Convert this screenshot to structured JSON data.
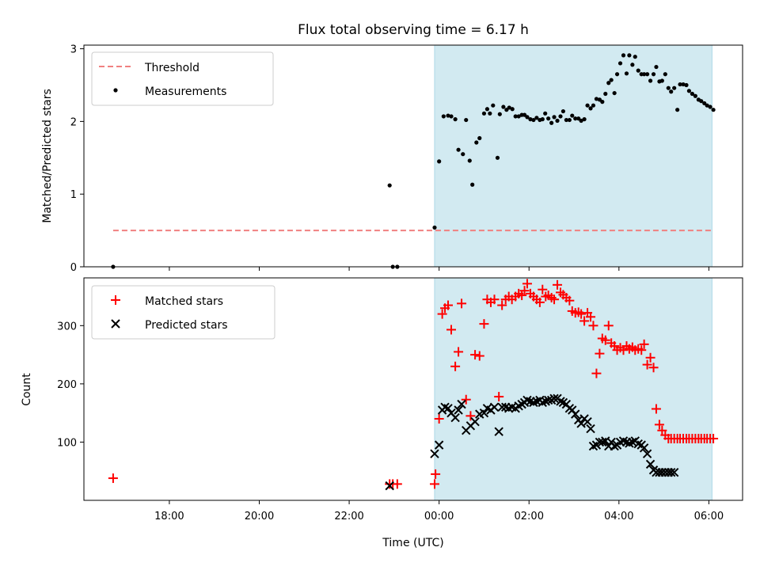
{
  "chart_data": [
    {
      "type": "scatter",
      "panel": "top",
      "title": "Flux total observing time = 6.17 h",
      "xlabel": "",
      "ylabel": "Matched/Predicted stars",
      "xlim": [
        16.1,
        30.75
      ],
      "ylim": [
        0,
        3.05
      ],
      "yticks": [
        0,
        1,
        2,
        3
      ],
      "ytick_labels": [
        "0",
        "1",
        "2",
        "3"
      ],
      "xticks": [
        18,
        20,
        22,
        24,
        26,
        28,
        30
      ],
      "shaded_span": [
        23.9,
        30.07
      ],
      "shaded_color": "#add8e6",
      "threshold": {
        "label": "Threshold",
        "y": 0.5,
        "x_start": 16.75,
        "x_end": 30.07,
        "color": "#f08080"
      },
      "legend": [
        "Threshold",
        "Measurements"
      ],
      "legend_position": "upper left",
      "series": [
        {
          "name": "Measurements",
          "marker": "dot",
          "color": "#000000",
          "x": [
            16.75,
            22.9,
            22.97,
            23.07,
            23.9,
            24.0,
            24.1,
            24.2,
            24.27,
            24.36,
            24.43,
            24.53,
            24.6,
            24.68,
            24.74,
            24.83,
            24.9,
            25.0,
            25.07,
            25.13,
            25.2,
            25.3,
            25.35,
            25.43,
            25.5,
            25.56,
            25.63,
            25.7,
            25.77,
            25.84,
            25.9,
            25.96,
            26.03,
            26.1,
            26.17,
            26.24,
            26.3,
            26.36,
            26.43,
            26.5,
            26.56,
            26.63,
            26.7,
            26.76,
            26.83,
            26.9,
            26.96,
            27.03,
            27.1,
            27.16,
            27.23,
            27.3,
            27.37,
            27.43,
            27.5,
            27.57,
            27.63,
            27.7,
            27.77,
            27.83,
            27.9,
            27.96,
            28.03,
            28.1,
            28.17,
            28.23,
            28.3,
            28.36,
            28.43,
            28.5,
            28.56,
            28.63,
            28.7,
            28.77,
            28.83,
            28.9,
            28.96,
            29.03,
            29.1,
            29.16,
            29.23,
            29.3,
            29.36,
            29.43,
            29.5,
            29.56,
            29.63,
            29.7,
            29.77,
            29.83,
            29.9,
            29.96,
            30.03,
            30.1
          ],
          "y": [
            0.0,
            1.12,
            0.0,
            0.0,
            0.54,
            1.45,
            2.07,
            2.08,
            2.07,
            2.03,
            1.61,
            1.55,
            2.02,
            1.46,
            1.13,
            1.71,
            1.77,
            2.11,
            2.17,
            2.11,
            2.22,
            1.5,
            2.1,
            2.2,
            2.16,
            2.19,
            2.17,
            2.07,
            2.07,
            2.09,
            2.09,
            2.06,
            2.03,
            2.02,
            2.05,
            2.02,
            2.03,
            2.11,
            2.04,
            1.98,
            2.06,
            2.01,
            2.07,
            2.14,
            2.02,
            2.02,
            2.08,
            2.04,
            2.04,
            2.01,
            2.03,
            2.22,
            2.18,
            2.22,
            2.31,
            2.3,
            2.27,
            2.38,
            2.53,
            2.57,
            2.39,
            2.65,
            2.8,
            2.91,
            2.66,
            2.91,
            2.78,
            2.89,
            2.7,
            2.65,
            2.65,
            2.65,
            2.56,
            2.65,
            2.75,
            2.55,
            2.56,
            2.65,
            2.46,
            2.41,
            2.46,
            2.16,
            2.51,
            2.51,
            2.5,
            2.42,
            2.38,
            2.35,
            2.3,
            2.28,
            2.25,
            2.22,
            2.2,
            2.16
          ]
        }
      ]
    },
    {
      "type": "scatter",
      "panel": "bottom",
      "title": "",
      "xlabel": "Time (UTC)",
      "ylabel": "Count",
      "xlim": [
        16.1,
        30.75
      ],
      "ylim": [
        0,
        382
      ],
      "yticks": [
        100,
        200,
        300
      ],
      "ytick_labels": [
        "100",
        "200",
        "300"
      ],
      "xticks": [
        18,
        20,
        22,
        24,
        26,
        28,
        30
      ],
      "xtick_labels": [
        "18:00",
        "20:00",
        "22:00",
        "00:00",
        "02:00",
        "04:00",
        "06:00"
      ],
      "shaded_span": [
        23.9,
        30.07
      ],
      "shaded_color": "#add8e6",
      "legend": [
        "Matched stars",
        "Predicted stars"
      ],
      "legend_position": "upper left",
      "series": [
        {
          "name": "Matched stars",
          "marker": "plus",
          "color": "#ff0000",
          "x": [
            16.75,
            22.9,
            22.97,
            23.07,
            23.9,
            23.92,
            24.0,
            24.07,
            24.13,
            24.2,
            24.27,
            24.36,
            24.43,
            24.5,
            24.6,
            24.7,
            24.8,
            24.9,
            25.0,
            25.07,
            25.15,
            25.23,
            25.33,
            25.4,
            25.48,
            25.55,
            25.62,
            25.7,
            25.77,
            25.84,
            25.9,
            25.96,
            26.03,
            26.1,
            26.17,
            26.24,
            26.3,
            26.37,
            26.43,
            26.5,
            26.56,
            26.63,
            26.7,
            26.76,
            26.83,
            26.9,
            26.96,
            27.03,
            27.1,
            27.16,
            27.23,
            27.3,
            27.37,
            27.43,
            27.5,
            27.57,
            27.63,
            27.7,
            27.77,
            27.83,
            27.9,
            27.96,
            28.03,
            28.1,
            28.17,
            28.23,
            28.3,
            28.36,
            28.43,
            28.5,
            28.56,
            28.63,
            28.7,
            28.77,
            28.83,
            28.9,
            28.96,
            29.03,
            29.1,
            29.16,
            29.23,
            29.3,
            29.36,
            29.43,
            29.5,
            29.56,
            29.63,
            29.7,
            29.77,
            29.83,
            29.9,
            29.96,
            30.03,
            30.1
          ],
          "y": [
            38,
            28,
            28,
            28,
            28,
            45,
            140,
            320,
            330,
            335,
            293,
            230,
            255,
            338,
            173,
            145,
            250,
            248,
            303,
            345,
            340,
            345,
            178,
            335,
            345,
            350,
            345,
            350,
            355,
            352,
            360,
            372,
            355,
            350,
            345,
            340,
            362,
            350,
            352,
            348,
            345,
            370,
            357,
            353,
            348,
            343,
            325,
            322,
            323,
            320,
            308,
            322,
            315,
            300,
            218,
            252,
            278,
            275,
            300,
            270,
            265,
            258,
            262,
            258,
            265,
            260,
            263,
            258,
            260,
            258,
            268,
            233,
            245,
            228,
            157,
            130,
            120,
            112,
            106,
            106,
            106,
            106,
            106,
            106,
            106,
            106,
            106,
            106,
            106,
            106,
            106,
            106,
            106,
            106
          ]
        },
        {
          "name": "Predicted stars",
          "marker": "x",
          "color": "#000000",
          "x": [
            22.9,
            23.9,
            24.0,
            24.07,
            24.13,
            24.2,
            24.27,
            24.36,
            24.43,
            24.5,
            24.6,
            24.7,
            24.8,
            24.9,
            25.0,
            25.07,
            25.15,
            25.23,
            25.33,
            25.4,
            25.48,
            25.55,
            25.62,
            25.7,
            25.77,
            25.84,
            25.9,
            25.96,
            26.03,
            26.1,
            26.17,
            26.24,
            26.3,
            26.37,
            26.43,
            26.5,
            26.56,
            26.63,
            26.7,
            26.76,
            26.83,
            26.9,
            26.96,
            27.03,
            27.1,
            27.16,
            27.23,
            27.3,
            27.37,
            27.43,
            27.5,
            27.57,
            27.63,
            27.7,
            27.77,
            27.83,
            27.9,
            27.96,
            28.03,
            28.1,
            28.17,
            28.23,
            28.3,
            28.36,
            28.43,
            28.5,
            28.56,
            28.63,
            28.7,
            28.77,
            28.83,
            28.9,
            28.96,
            29.03,
            29.1,
            29.16,
            29.23
          ],
          "y": [
            25,
            80,
            95,
            155,
            160,
            158,
            150,
            142,
            155,
            165,
            120,
            128,
            135,
            148,
            150,
            158,
            155,
            160,
            118,
            160,
            160,
            158,
            160,
            158,
            162,
            165,
            168,
            172,
            170,
            168,
            170,
            172,
            168,
            170,
            172,
            172,
            175,
            175,
            170,
            168,
            165,
            158,
            155,
            148,
            138,
            132,
            140,
            135,
            123,
            93,
            95,
            100,
            100,
            102,
            93,
            100,
            93,
            95,
            100,
            102,
            100,
            98,
            100,
            102,
            97,
            95,
            90,
            80,
            62,
            52,
            48,
            48,
            48,
            48,
            48,
            48,
            48
          ]
        }
      ]
    }
  ]
}
